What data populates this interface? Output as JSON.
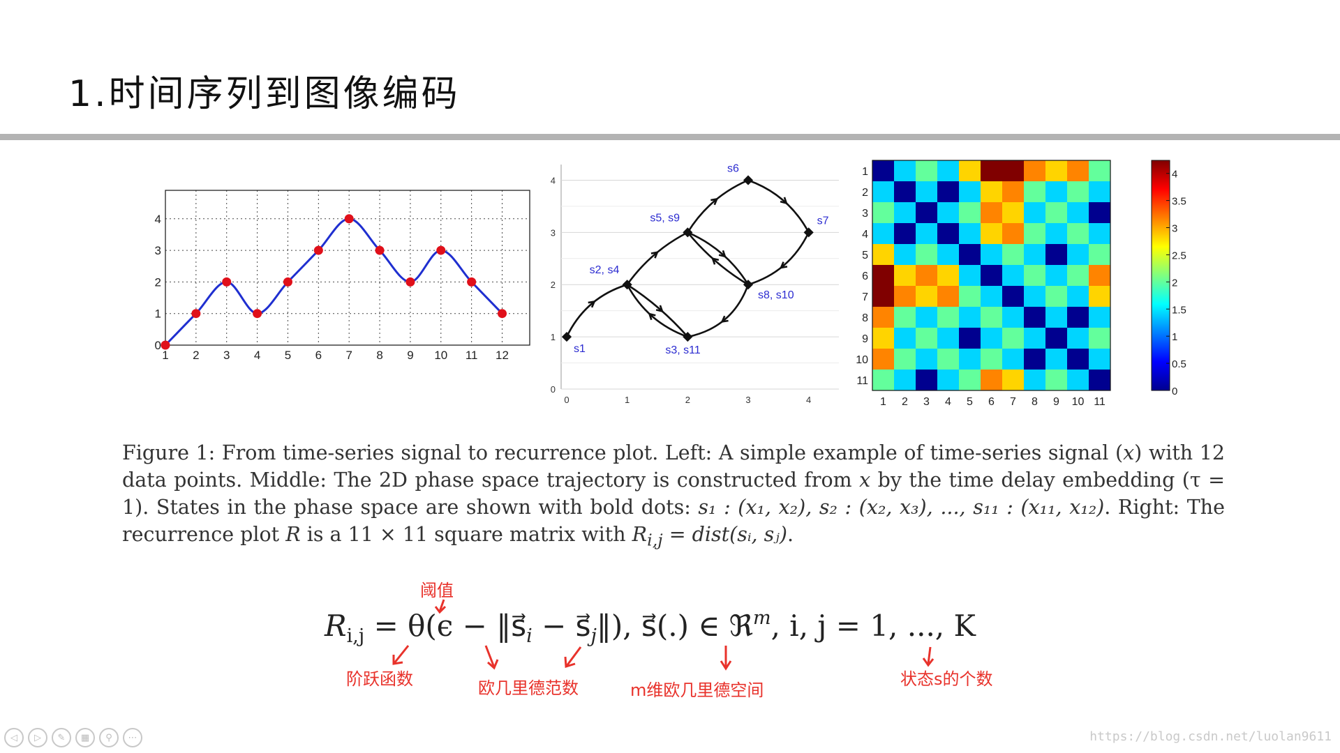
{
  "slide": {
    "title": "1.时间序列到图像编码"
  },
  "chart_data": [
    {
      "type": "line",
      "x": [
        1,
        2,
        3,
        4,
        5,
        6,
        7,
        8,
        9,
        10,
        11,
        12
      ],
      "values": [
        0,
        1,
        2,
        1,
        2,
        3,
        4,
        3,
        2,
        3,
        2,
        1
      ],
      "xticks": [
        "1",
        "2",
        "3",
        "4",
        "5",
        "6",
        "7",
        "8",
        "9",
        "10",
        "11",
        "12"
      ],
      "yticks": [
        "0",
        "1",
        "2",
        "3",
        "4"
      ],
      "xlim": [
        1,
        12.9
      ],
      "ylim": [
        0,
        4.9
      ],
      "grid": true,
      "colors": {
        "line": "#1f2fd0",
        "marker": "#e0101a"
      }
    },
    {
      "type": "scatter",
      "xticks": [
        "0",
        "1",
        "2",
        "3",
        "4"
      ],
      "yticks": [
        "0",
        "1",
        "2",
        "3",
        "4"
      ],
      "xlim": [
        0,
        4.5
      ],
      "ylim": [
        0,
        4.3
      ],
      "points": [
        {
          "label": "s1",
          "x": 0,
          "y": 1
        },
        {
          "label": "s2, s4",
          "x": 1,
          "y": 2
        },
        {
          "label": "s3, s11",
          "x": 2,
          "y": 1
        },
        {
          "label": "s5, s9",
          "x": 2,
          "y": 3
        },
        {
          "label": "s6",
          "x": 3,
          "y": 4
        },
        {
          "label": "s7",
          "x": 4,
          "y": 3
        },
        {
          "label": "s8, s10",
          "x": 3,
          "y": 2
        }
      ],
      "colors": {
        "label": "#2b2bd0",
        "edge": "#111111"
      }
    },
    {
      "type": "heatmap",
      "rows": [
        "1",
        "2",
        "3",
        "4",
        "5",
        "6",
        "7",
        "8",
        "9",
        "10",
        "11"
      ],
      "cols": [
        "1",
        "2",
        "3",
        "4",
        "5",
        "6",
        "7",
        "8",
        "9",
        "10",
        "11"
      ],
      "colorbar_ticks": [
        "0",
        "0.5",
        "1",
        "1.5",
        "2",
        "2.5",
        "3",
        "3.5",
        "4"
      ],
      "vmin": 0,
      "vmax": 4.24
    }
  ],
  "caption": {
    "seg1": "Figure 1: From time-series signal to recurrence plot. Left: A simple example of time-series signal (",
    "x1": "x",
    "seg2": ") with 12 data points. Middle: The 2D phase space trajectory is constructed from ",
    "x2": "x",
    "seg3": " by the time delay embedding (τ = 1). States in the phase space are shown with bold dots: ",
    "states": "s₁ : (x₁, x₂), s₂ : (x₂, x₃), ..., s₁₁ : (x₁₁, x₁₂)",
    "seg4": ". Right: The recurrence plot ",
    "R": "R",
    "seg5": " is a 11 × 11 square matrix with ",
    "rij": "R",
    "rij_sub": "i,j",
    "seg6": " = ",
    "dist": "dist(sᵢ, sⱼ)",
    "seg7": "."
  },
  "formula": {
    "part1": "R",
    "part1_sub": "i,j",
    "part2": " = θ(ϵ − ‖s⃗",
    "part2_sub_i": "i",
    "part3": " − s⃗",
    "part3_sub_j": "j",
    "part4": "‖),   s⃗(.) ∈ ℜ",
    "part4_sup": "m",
    "part5": ",   i, j = 1, ..., K"
  },
  "annotations": {
    "threshold": "阈值",
    "step_function": "阶跃函数",
    "euclidean_norm": "欧几里德范数",
    "space": "m维欧几里德空间",
    "count": "状态s的个数"
  },
  "toolbar": {
    "buttons": [
      "prev-icon",
      "next-icon",
      "pen-icon",
      "slides-icon",
      "zoom-icon",
      "more-icon"
    ],
    "symbols": [
      "◁",
      "▷",
      "✎",
      "▦",
      "⚲",
      "⋯"
    ]
  },
  "watermark": "https://blog.csdn.net/luolan9611"
}
